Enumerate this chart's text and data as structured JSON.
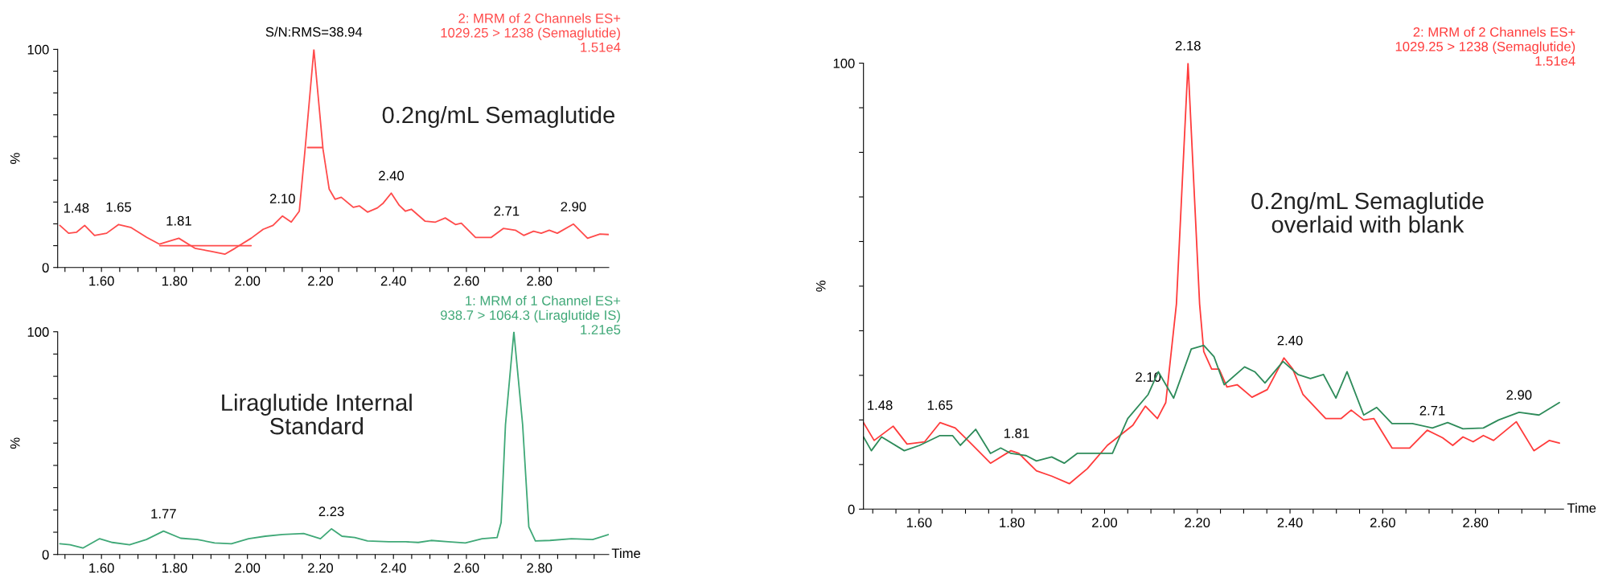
{
  "chart_data": [
    {
      "type": "line",
      "ylabel": "%",
      "xlim": [
        1.48,
        2.99
      ],
      "ylim": [
        0,
        100
      ],
      "xticks": [
        {
          "value": 1.5,
          "label": null
        },
        {
          "value": 1.55,
          "label": null
        },
        {
          "value": 1.6,
          "label": "1.60"
        },
        {
          "value": 1.65,
          "label": null
        },
        {
          "value": 1.7,
          "label": null
        },
        {
          "value": 1.75,
          "label": null
        },
        {
          "value": 1.8,
          "label": "1.80"
        },
        {
          "value": 1.85,
          "label": null
        },
        {
          "value": 1.9,
          "label": null
        },
        {
          "value": 1.95,
          "label": null
        },
        {
          "value": 2.0,
          "label": "2.00"
        },
        {
          "value": 2.05,
          "label": null
        },
        {
          "value": 2.1,
          "label": null
        },
        {
          "value": 2.15,
          "label": null
        },
        {
          "value": 2.2,
          "label": "2.20"
        },
        {
          "value": 2.25,
          "label": null
        },
        {
          "value": 2.3,
          "label": null
        },
        {
          "value": 2.35,
          "label": null
        },
        {
          "value": 2.4,
          "label": "2.40"
        },
        {
          "value": 2.45,
          "label": null
        },
        {
          "value": 2.5,
          "label": null
        },
        {
          "value": 2.55,
          "label": null
        },
        {
          "value": 2.6,
          "label": "2.60"
        },
        {
          "value": 2.65,
          "label": null
        },
        {
          "value": 2.7,
          "label": null
        },
        {
          "value": 2.75,
          "label": null
        },
        {
          "value": 2.8,
          "label": "2.80"
        },
        {
          "value": 2.85,
          "label": null
        },
        {
          "value": 2.9,
          "label": null
        },
        {
          "value": 2.95,
          "label": null
        }
      ],
      "yticks": [
        0,
        {
          "value": 10,
          "label": null
        },
        {
          "value": 20,
          "label": null
        },
        {
          "value": 30,
          "label": null
        },
        {
          "value": 40,
          "label": null
        },
        {
          "value": 50,
          "label": null
        },
        {
          "value": 60,
          "label": null
        },
        {
          "value": 70,
          "label": null
        },
        {
          "value": 80,
          "label": null
        },
        {
          "value": 90,
          "label": null
        },
        100
      ],
      "series": [
        {
          "color": "#ff4b4b",
          "x": [
            1.486,
            1.51,
            1.532,
            1.554,
            1.581,
            1.614,
            1.647,
            1.68,
            1.724,
            1.759,
            1.812,
            1.856,
            1.9,
            1.938,
            1.966,
            2.01,
            2.043,
            2.07,
            2.096,
            2.12,
            2.142,
            2.158,
            2.182,
            2.207,
            2.224,
            2.24,
            2.257,
            2.29,
            2.307,
            2.329,
            2.356,
            2.372,
            2.394,
            2.416,
            2.433,
            2.449,
            2.487,
            2.515,
            2.542,
            2.57,
            2.586,
            2.625,
            2.668,
            2.701,
            2.734,
            2.757,
            2.784,
            2.805,
            2.827,
            2.849,
            2.893,
            2.932,
            2.966,
            2.99
          ],
          "values": [
            19.3,
            15.7,
            16.2,
            19.3,
            14.7,
            15.7,
            19.7,
            18.4,
            13.8,
            10.7,
            13.4,
            8.8,
            7.4,
            6.1,
            8.8,
            13.4,
            17.5,
            19.3,
            23.6,
            20.8,
            25.8,
            54.3,
            100,
            54.3,
            35.9,
            31.3,
            32.2,
            27.6,
            28.2,
            25.4,
            27.3,
            29.5,
            34.1,
            28.5,
            25.8,
            26.7,
            21.2,
            20.8,
            22.7,
            19.7,
            20.3,
            13.8,
            13.8,
            17.9,
            17.1,
            14.7,
            16.6,
            15.7,
            17.1,
            15.7,
            19.9,
            13.4,
            15.3,
            15.1
          ]
        },
        {
          "color": "#ff4b4b",
          "x": [
            1.76,
            2.01
          ],
          "values": [
            10,
            10
          ]
        },
        {
          "color": "#ff4b4b",
          "x": [
            2.165,
            2.205
          ],
          "values": [
            55,
            55
          ]
        }
      ],
      "annotations": [
        {
          "text": "1.48",
          "x": 1.486,
          "y": 19.3
        },
        {
          "text": "1.65",
          "x": 1.647,
          "y": 19.7
        },
        {
          "text": "1.81",
          "x": 1.812,
          "y": 13.4
        },
        {
          "text": "2.10",
          "x": 2.096,
          "y": 23.6
        },
        {
          "text": "S/N:RMS=38.94",
          "x": 2.182,
          "y": 100
        },
        {
          "text": "2.40",
          "x": 2.394,
          "y": 34.1
        },
        {
          "text": "2.71",
          "x": 2.71,
          "y": 17.9
        },
        {
          "text": "2.90",
          "x": 2.893,
          "y": 19.9
        },
        "2: MRM of 2 Channels ES+",
        "1029.25 > 1238 (Semaglutide)",
        "1.51e4",
        "0.2ng/mL Semaglutide"
      ]
    },
    {
      "type": "line",
      "ylabel": "%",
      "xlabel": "Time",
      "xlim": [
        1.48,
        2.99
      ],
      "ylim": [
        0,
        100
      ],
      "xticks": [
        {
          "value": 1.5,
          "label": null
        },
        {
          "value": 1.55,
          "label": null
        },
        {
          "value": 1.6,
          "label": "1.60"
        },
        {
          "value": 1.65,
          "label": null
        },
        {
          "value": 1.7,
          "label": null
        },
        {
          "value": 1.75,
          "label": null
        },
        {
          "value": 1.8,
          "label": "1.80"
        },
        {
          "value": 1.85,
          "label": null
        },
        {
          "value": 1.9,
          "label": null
        },
        {
          "value": 1.95,
          "label": null
        },
        {
          "value": 2.0,
          "label": "2.00"
        },
        {
          "value": 2.05,
          "label": null
        },
        {
          "value": 2.1,
          "label": null
        },
        {
          "value": 2.15,
          "label": null
        },
        {
          "value": 2.2,
          "label": "2.20"
        },
        {
          "value": 2.25,
          "label": null
        },
        {
          "value": 2.3,
          "label": null
        },
        {
          "value": 2.35,
          "label": null
        },
        {
          "value": 2.4,
          "label": "2.40"
        },
        {
          "value": 2.45,
          "label": null
        },
        {
          "value": 2.5,
          "label": null
        },
        {
          "value": 2.55,
          "label": null
        },
        {
          "value": 2.6,
          "label": "2.60"
        },
        {
          "value": 2.65,
          "label": null
        },
        {
          "value": 2.7,
          "label": null
        },
        {
          "value": 2.75,
          "label": null
        },
        {
          "value": 2.8,
          "label": "2.80"
        },
        {
          "value": 2.85,
          "label": null
        },
        {
          "value": 2.9,
          "label": null
        },
        {
          "value": 2.95,
          "label": null
        }
      ],
      "yticks": [
        0,
        {
          "value": 10,
          "label": null
        },
        {
          "value": 20,
          "label": null
        },
        {
          "value": 30,
          "label": null
        },
        {
          "value": 40,
          "label": null
        },
        {
          "value": 50,
          "label": null
        },
        {
          "value": 60,
          "label": null
        },
        {
          "value": 70,
          "label": null
        },
        {
          "value": 80,
          "label": null
        },
        {
          "value": 90,
          "label": null
        },
        100
      ],
      "series": [
        {
          "color": "#3fa877",
          "x": [
            1.486,
            1.514,
            1.549,
            1.595,
            1.63,
            1.677,
            1.723,
            1.77,
            1.817,
            1.863,
            1.91,
            1.956,
            2.003,
            2.049,
            2.096,
            2.154,
            2.2,
            2.23,
            2.259,
            2.294,
            2.329,
            2.387,
            2.434,
            2.468,
            2.503,
            2.55,
            2.597,
            2.643,
            2.684,
            2.695,
            2.707,
            2.73,
            2.754,
            2.771,
            2.789,
            2.829,
            2.888,
            2.946,
            2.99
          ],
          "values": [
            4.8,
            4.4,
            2.9,
            7.1,
            5.4,
            4.4,
            6.7,
            10.5,
            7.3,
            6.7,
            5.2,
            4.8,
            7.1,
            8.2,
            9.0,
            9.4,
            7.1,
            11.5,
            8.2,
            7.6,
            6.1,
            5.7,
            5.7,
            5.4,
            6.3,
            5.7,
            5.2,
            7.1,
            7.6,
            14.3,
            58.3,
            100,
            58.3,
            12.4,
            6.1,
            6.3,
            7.1,
            6.7,
            9.0
          ]
        }
      ],
      "annotations": [
        {
          "text": "1.77",
          "x": 1.77,
          "y": 10.5
        },
        {
          "text": "2.23",
          "x": 2.23,
          "y": 11.5
        },
        "1: MRM of 1 Channel ES+",
        "938.7 > 1064.3 (Liraglutide IS)",
        "1.21e5",
        "Liraglutide Internal\nStandard"
      ]
    },
    {
      "type": "line",
      "ylabel": "%",
      "xlabel": "Time",
      "xlim": [
        1.48,
        2.99
      ],
      "ylim": [
        0,
        100
      ],
      "xticks": [
        {
          "value": 1.5,
          "label": null
        },
        {
          "value": 1.55,
          "label": null
        },
        {
          "value": 1.6,
          "label": "1.60"
        },
        {
          "value": 1.65,
          "label": null
        },
        {
          "value": 1.7,
          "label": null
        },
        {
          "value": 1.75,
          "label": null
        },
        {
          "value": 1.8,
          "label": "1.80"
        },
        {
          "value": 1.85,
          "label": null
        },
        {
          "value": 1.9,
          "label": null
        },
        {
          "value": 1.95,
          "label": null
        },
        {
          "value": 2.0,
          "label": "2.00"
        },
        {
          "value": 2.05,
          "label": null
        },
        {
          "value": 2.1,
          "label": null
        },
        {
          "value": 2.15,
          "label": null
        },
        {
          "value": 2.2,
          "label": "2.20"
        },
        {
          "value": 2.25,
          "label": null
        },
        {
          "value": 2.3,
          "label": null
        },
        {
          "value": 2.35,
          "label": null
        },
        {
          "value": 2.4,
          "label": "2.40"
        },
        {
          "value": 2.45,
          "label": null
        },
        {
          "value": 2.5,
          "label": null
        },
        {
          "value": 2.55,
          "label": null
        },
        {
          "value": 2.6,
          "label": "2.60"
        },
        {
          "value": 2.65,
          "label": null
        },
        {
          "value": 2.7,
          "label": null
        },
        {
          "value": 2.75,
          "label": null
        },
        {
          "value": 2.8,
          "label": "2.80"
        },
        {
          "value": 2.85,
          "label": null
        },
        {
          "value": 2.9,
          "label": null
        },
        {
          "value": 2.95,
          "label": null
        }
      ],
      "yticks": [
        0,
        {
          "value": 10,
          "label": null
        },
        {
          "value": 20,
          "label": null
        },
        {
          "value": 30,
          "label": null
        },
        {
          "value": 40,
          "label": null
        },
        {
          "value": 50,
          "label": null
        },
        {
          "value": 60,
          "label": null
        },
        {
          "value": 70,
          "label": null
        },
        {
          "value": 80,
          "label": null
        },
        {
          "value": 90,
          "label": null
        },
        100
      ],
      "series": [
        {
          "color": "#ff3b3b",
          "x": [
            1.48,
            1.503,
            1.544,
            1.574,
            1.612,
            1.645,
            1.678,
            1.711,
            1.754,
            1.798,
            1.815,
            1.853,
            1.886,
            1.924,
            1.963,
            2.006,
            2.061,
            2.088,
            2.114,
            2.132,
            2.155,
            2.18,
            2.205,
            2.214,
            2.231,
            2.247,
            2.264,
            2.286,
            2.318,
            2.351,
            2.387,
            2.406,
            2.428,
            2.477,
            2.51,
            2.532,
            2.559,
            2.581,
            2.62,
            2.658,
            2.696,
            2.729,
            2.751,
            2.773,
            2.795,
            2.817,
            2.839,
            2.888,
            2.926,
            2.959,
            2.981
          ],
          "values": [
            19.4,
            15.4,
            18.6,
            14.6,
            15.1,
            19.4,
            18.2,
            14.8,
            10.3,
            13.1,
            12.5,
            8.6,
            7.4,
            5.7,
            9.1,
            14.3,
            18.8,
            23.1,
            20.3,
            23.9,
            46,
            100,
            46,
            35.3,
            31.4,
            31.4,
            27.4,
            27.9,
            25.1,
            26.8,
            33.9,
            31.4,
            25.7,
            20.3,
            20.3,
            22.2,
            20.0,
            20.3,
            13.7,
            13.7,
            17.7,
            16.0,
            14.3,
            16.2,
            15.1,
            16.5,
            15.4,
            19.6,
            13.1,
            15.4,
            14.8
          ]
        },
        {
          "color": "#2e8b5a",
          "x": [
            1.48,
            1.497,
            1.519,
            1.568,
            1.601,
            1.645,
            1.672,
            1.689,
            1.722,
            1.754,
            1.776,
            1.798,
            1.831,
            1.853,
            1.886,
            1.913,
            1.941,
            1.984,
            2.017,
            2.05,
            2.094,
            2.116,
            2.149,
            2.187,
            2.214,
            2.236,
            2.258,
            2.302,
            2.324,
            2.346,
            2.385,
            2.417,
            2.444,
            2.472,
            2.499,
            2.523,
            2.559,
            2.587,
            2.62,
            2.664,
            2.707,
            2.74,
            2.773,
            2.817,
            2.85,
            2.894,
            2.937,
            2.981
          ],
          "values": [
            16.2,
            13.1,
            16.2,
            13.1,
            14.3,
            16.5,
            16.5,
            14.3,
            17.9,
            12.5,
            13.7,
            12.5,
            12.0,
            10.8,
            11.7,
            10.3,
            12.5,
            12.5,
            12.5,
            20.3,
            25.7,
            30.8,
            24.9,
            35.9,
            36.7,
            34.2,
            27.9,
            31.9,
            30.8,
            28.3,
            33.1,
            30.2,
            29.3,
            30.2,
            24.9,
            30.8,
            21.1,
            22.8,
            19.2,
            19.2,
            18.2,
            19.4,
            18.0,
            18.2,
            20.0,
            21.7,
            21.1,
            23.9
          ]
        }
      ],
      "annotations": [
        {
          "text": "1.48",
          "x": 1.48,
          "y": 19.4
        },
        {
          "text": "1.65",
          "x": 1.645,
          "y": 19.4
        },
        {
          "text": "1.81",
          "x": 1.81,
          "y": 13.1
        },
        {
          "text": "2.10",
          "x": 2.094,
          "y": 25.7
        },
        {
          "text": "2.18",
          "x": 2.18,
          "y": 100
        },
        {
          "text": "2.40",
          "x": 2.4,
          "y": 33.9
        },
        {
          "text": "2.71",
          "x": 2.707,
          "y": 18.2
        },
        {
          "text": "2.90",
          "x": 2.894,
          "y": 21.7
        },
        "2: MRM of 2 Channels ES+",
        "1029.25 > 1238 (Semaglutide)",
        "1.51e4",
        "0.2ng/mL Semaglutide\noverlaid with blank"
      ]
    }
  ]
}
